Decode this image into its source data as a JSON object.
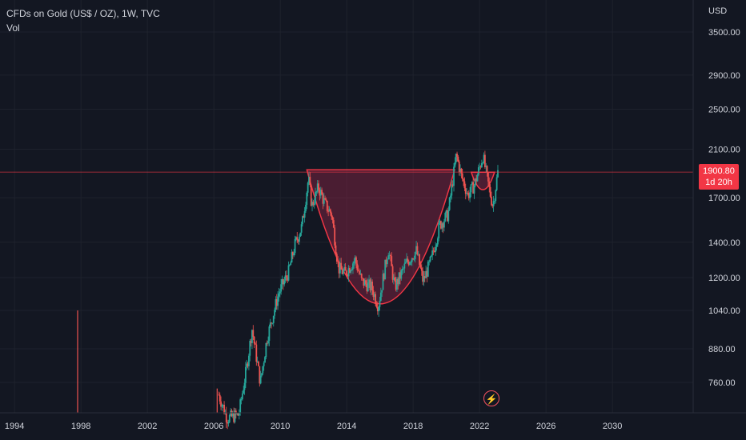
{
  "header": {
    "symbol_title": "CFDs on Gold (US$ / OZ), 1W, TVC",
    "volume_label": "Vol"
  },
  "price_scale": {
    "currency": "USD",
    "last_price": "1900.80",
    "countdown": "1d 20h"
  },
  "event_icon": "lightning-icon",
  "colors": {
    "background": "#131722",
    "up": "#26a69a",
    "down": "#ef5350",
    "pattern_fill": "rgba(178,40,80,0.35)",
    "pattern_line": "#f23645"
  },
  "chart_data": {
    "type": "candlestick",
    "title": "CFDs on Gold (US$ / OZ), 1W, TVC",
    "y_scale": "log",
    "ylim": [
      650,
      3700
    ],
    "y_ticks": [
      "3500.00",
      "2900.00",
      "2500.00",
      "2100.00",
      "1700.00",
      "1400.00",
      "1200.00",
      "1040.00",
      "880.00",
      "760.00"
    ],
    "x_ticks": [
      "1994",
      "1998",
      "2002",
      "2006",
      "2010",
      "2014",
      "2018",
      "2022",
      "2026",
      "2030"
    ],
    "xlim": [
      1993.0,
      2032.5
    ],
    "last_price": 1900.8,
    "price_path": [
      [
        2006.3,
        720
      ],
      [
        2006.8,
        650
      ],
      [
        2007.5,
        660
      ],
      [
        2008.0,
        820
      ],
      [
        2008.3,
        960
      ],
      [
        2008.8,
        760
      ],
      [
        2009.2,
        920
      ],
      [
        2009.9,
        1120
      ],
      [
        2010.5,
        1230
      ],
      [
        2010.9,
        1390
      ],
      [
        2011.3,
        1500
      ],
      [
        2011.7,
        1850
      ],
      [
        2011.9,
        1640
      ],
      [
        2012.3,
        1780
      ],
      [
        2012.7,
        1650
      ],
      [
        2013.1,
        1580
      ],
      [
        2013.5,
        1250
      ],
      [
        2013.9,
        1220
      ],
      [
        2014.5,
        1300
      ],
      [
        2014.9,
        1180
      ],
      [
        2015.5,
        1150
      ],
      [
        2015.9,
        1060
      ],
      [
        2016.5,
        1360
      ],
      [
        2016.9,
        1150
      ],
      [
        2017.6,
        1280
      ],
      [
        2018.2,
        1350
      ],
      [
        2018.6,
        1180
      ],
      [
        2019.1,
        1300
      ],
      [
        2019.6,
        1510
      ],
      [
        2020.1,
        1580
      ],
      [
        2020.6,
        2050
      ],
      [
        2020.9,
        1870
      ],
      [
        2021.3,
        1720
      ],
      [
        2021.7,
        1800
      ],
      [
        2022.2,
        2040
      ],
      [
        2022.6,
        1750
      ],
      [
        2022.8,
        1640
      ],
      [
        2023.1,
        1900
      ]
    ],
    "volume_spikes": [
      [
        1997.8,
        1040
      ],
      [
        2006.2,
        740
      ]
    ],
    "patterns": [
      {
        "type": "cup",
        "start": [
          2011.6,
          1920
        ],
        "bottom": [
          2016.0,
          1070
        ],
        "end": [
          2020.5,
          1920
        ]
      },
      {
        "type": "handle",
        "start": [
          2021.5,
          1900
        ],
        "bottom": [
          2022.2,
          1760
        ],
        "end": [
          2022.9,
          1900
        ]
      }
    ]
  }
}
